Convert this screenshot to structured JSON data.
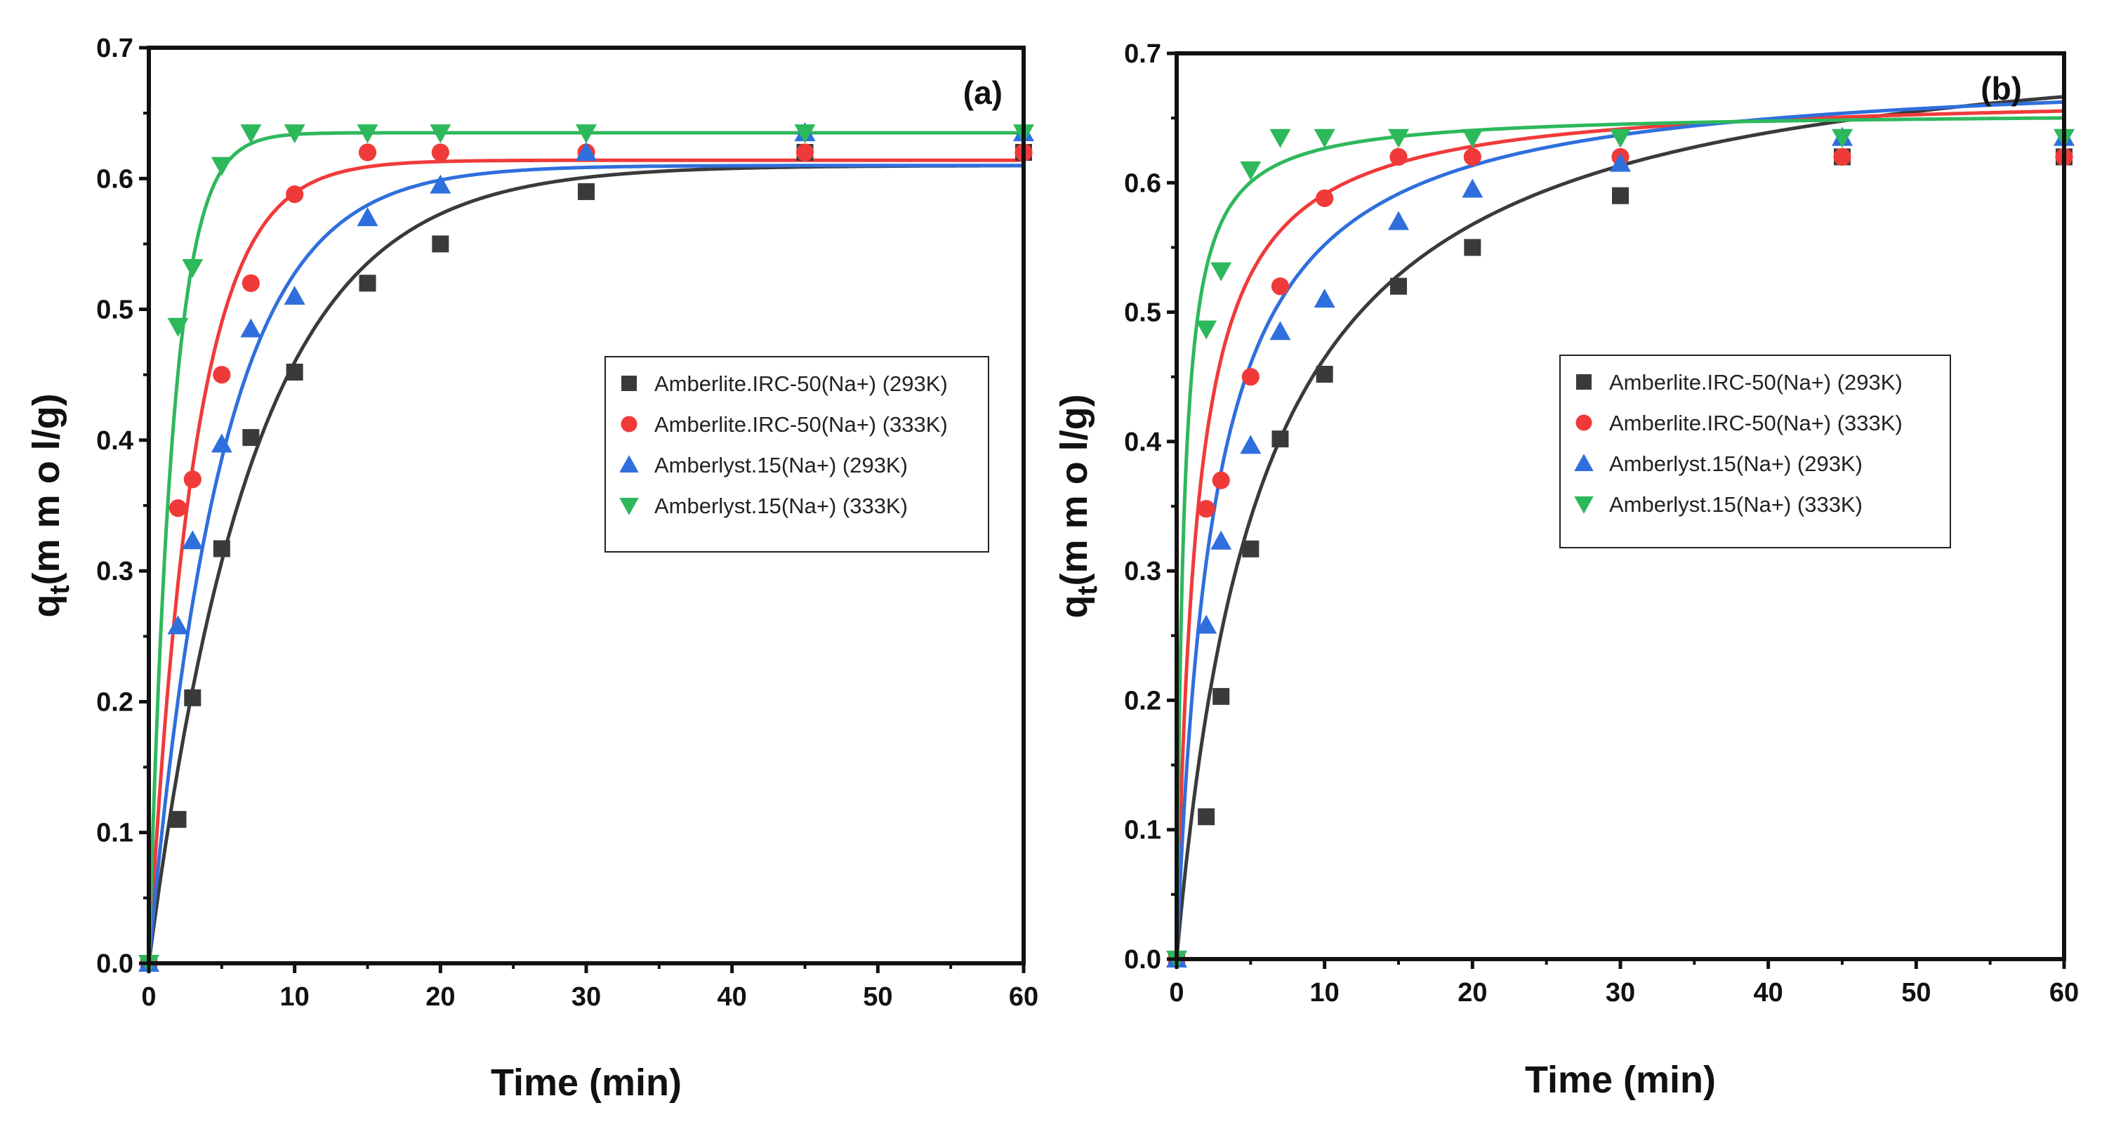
{
  "colors": {
    "black_series": "#3a3a3a",
    "red_series": "#f03a3a",
    "blue_series": "#2f6fdd",
    "green_series": "#2eb85c"
  },
  "chart_data": [
    {
      "type": "scatter",
      "panel_label": "(a)",
      "xlabel": "Time (min)",
      "ylabel_main": "q",
      "ylabel_sub": "t",
      "ylabel_unit": "(m m o l/g)",
      "xlim": [
        0,
        60
      ],
      "ylim": [
        0,
        0.7
      ],
      "xticks": [
        "0",
        "10",
        "20",
        "30",
        "40",
        "50",
        "60"
      ],
      "yticks": [
        "0.0",
        "0.1",
        "0.2",
        "0.3",
        "0.4",
        "0.5",
        "0.6",
        "0.7"
      ],
      "legend_position": "center-right",
      "series": [
        {
          "name": "Amberlite.IRC-50(Na+) (293K)",
          "marker": "square",
          "color": "#3a3a3a",
          "x": [
            0,
            2,
            3,
            5,
            7,
            10,
            15,
            20,
            30,
            45,
            60
          ],
          "y": [
            0.0,
            0.11,
            0.203,
            0.317,
            0.402,
            0.452,
            0.52,
            0.55,
            0.59,
            0.62,
            0.62
          ],
          "fit": {
            "model": "pfo",
            "qe": 0.61,
            "k": 0.14
          }
        },
        {
          "name": "Amberlite.IRC-50(Na+) (333K)",
          "marker": "circle",
          "color": "#f03a3a",
          "x": [
            0,
            2,
            3,
            5,
            7,
            10,
            15,
            20,
            30,
            45,
            60
          ],
          "y": [
            0.0,
            0.348,
            0.37,
            0.45,
            0.52,
            0.588,
            0.62,
            0.62,
            0.62,
            0.62,
            0.62
          ],
          "fit": {
            "model": "pfo",
            "qe": 0.614,
            "k": 0.32
          }
        },
        {
          "name": "Amberlyst.15(Na+) (293K)",
          "marker": "triangle-up",
          "color": "#2f6fdd",
          "x": [
            0,
            2,
            3,
            5,
            7,
            10,
            15,
            20,
            30,
            45,
            60
          ],
          "y": [
            0.0,
            0.258,
            0.323,
            0.397,
            0.485,
            0.51,
            0.57,
            0.595,
            0.62,
            0.635,
            0.635
          ],
          "fit": {
            "model": "pfo",
            "qe": 0.61,
            "k": 0.2
          }
        },
        {
          "name": "Amberlyst.15(Na+) (333K)",
          "marker": "triangle-down",
          "color": "#2eb85c",
          "x": [
            0,
            2,
            3,
            5,
            7,
            10,
            15,
            20,
            30,
            45,
            60
          ],
          "y": [
            0.0,
            0.487,
            0.532,
            0.61,
            0.635,
            0.635,
            0.635,
            0.635,
            0.635,
            0.635,
            0.635
          ],
          "fit": {
            "model": "pfo",
            "qe": 0.635,
            "k": 0.62
          }
        }
      ]
    },
    {
      "type": "scatter",
      "panel_label": "(b)",
      "xlabel": "Time (min)",
      "ylabel_main": "q",
      "ylabel_sub": "t",
      "ylabel_unit": "(m m o l/g)",
      "xlim": [
        0,
        60
      ],
      "ylim": [
        0,
        0.7
      ],
      "xticks": [
        "0",
        "10",
        "20",
        "30",
        "40",
        "50",
        "60"
      ],
      "yticks": [
        "0.0",
        "0.1",
        "0.2",
        "0.3",
        "0.4",
        "0.5",
        "0.6",
        "0.7"
      ],
      "legend_position": "center-right",
      "series": [
        {
          "name": "Amberlite.IRC-50(Na+) (293K)",
          "marker": "square",
          "color": "#3a3a3a",
          "x": [
            0,
            2,
            3,
            5,
            7,
            10,
            15,
            20,
            30,
            45,
            60
          ],
          "y": [
            0.0,
            0.11,
            0.203,
            0.317,
            0.402,
            0.452,
            0.52,
            0.55,
            0.59,
            0.62,
            0.62
          ],
          "fit": {
            "model": "pso",
            "qe": 0.73,
            "k": 0.175
          }
        },
        {
          "name": "Amberlite.IRC-50(Na+) (333K)",
          "marker": "circle",
          "color": "#f03a3a",
          "x": [
            0,
            2,
            3,
            5,
            7,
            10,
            15,
            20,
            30,
            45,
            60
          ],
          "y": [
            0.0,
            0.348,
            0.37,
            0.45,
            0.52,
            0.588,
            0.62,
            0.62,
            0.62,
            0.62,
            0.62
          ],
          "fit": {
            "model": "pso",
            "qe": 0.67,
            "k": 0.75
          }
        },
        {
          "name": "Amberlyst.15(Na+) (293K)",
          "marker": "triangle-up",
          "color": "#2f6fdd",
          "x": [
            0,
            2,
            3,
            5,
            7,
            10,
            15,
            20,
            30,
            45,
            60
          ],
          "y": [
            0.0,
            0.258,
            0.323,
            0.397,
            0.485,
            0.51,
            0.57,
            0.595,
            0.615,
            0.635,
            0.635
          ],
          "fit": {
            "model": "pso",
            "qe": 0.69,
            "k": 0.4
          }
        },
        {
          "name": "Amberlyst.15(Na+) (333K)",
          "marker": "triangle-down",
          "color": "#2eb85c",
          "x": [
            0,
            2,
            3,
            5,
            7,
            10,
            15,
            20,
            30,
            45,
            60
          ],
          "y": [
            0.0,
            0.487,
            0.532,
            0.61,
            0.635,
            0.635,
            0.635,
            0.635,
            0.635,
            0.635,
            0.635
          ],
          "fit": {
            "model": "pso",
            "qe": 0.655,
            "k": 2.2
          }
        }
      ]
    }
  ]
}
